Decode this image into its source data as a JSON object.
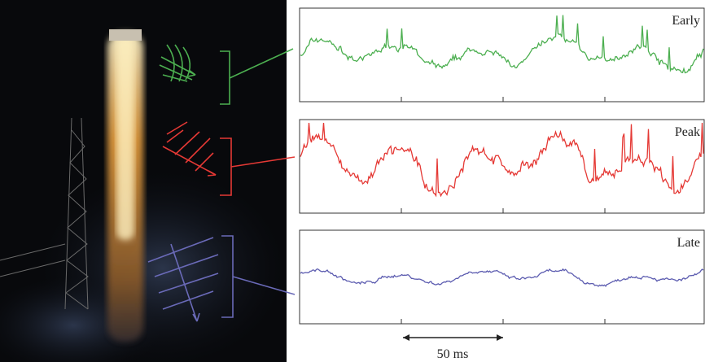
{
  "panels": [
    {
      "label": "Early"
    },
    {
      "label": "Peak"
    },
    {
      "label": "Late"
    }
  ],
  "scale_bar": {
    "label": "50 ms"
  }
}
